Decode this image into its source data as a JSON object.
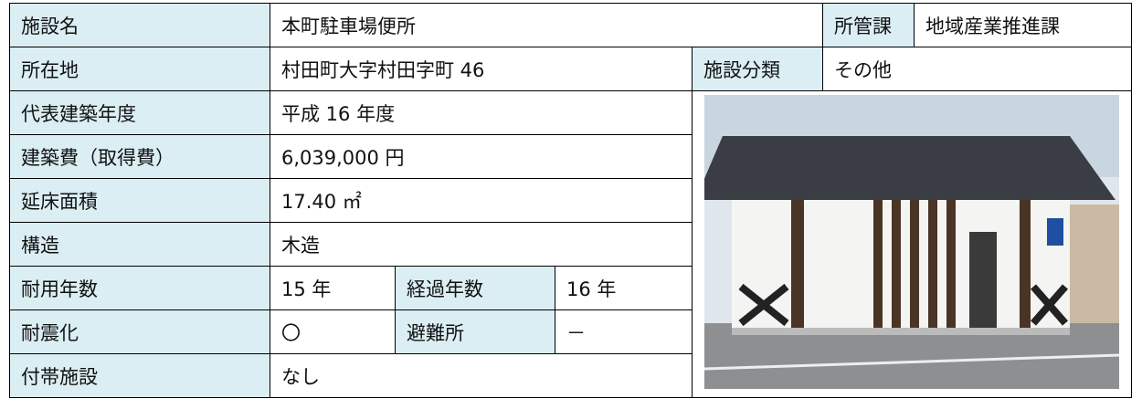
{
  "table": {
    "rows": [
      [
        "施設名",
        "本町駐車場便所",
        "所管課",
        "地域産業推進課"
      ],
      [
        "所在地",
        "村田町大字村田字町 46",
        "施設分類",
        "その他"
      ],
      [
        "代表建築年度",
        "平成 16 年度"
      ],
      [
        "建築費（取得費）",
        "6,039,000 円"
      ],
      [
        "延床面積",
        "17.40 ㎡"
      ],
      [
        "構造",
        "木造"
      ],
      [
        "耐用年数",
        "15 年",
        "経過年数",
        "16 年"
      ],
      [
        "耐震化",
        "〇",
        "避難所",
        "－"
      ],
      [
        "付帯施設",
        "なし"
      ]
    ]
  }
}
